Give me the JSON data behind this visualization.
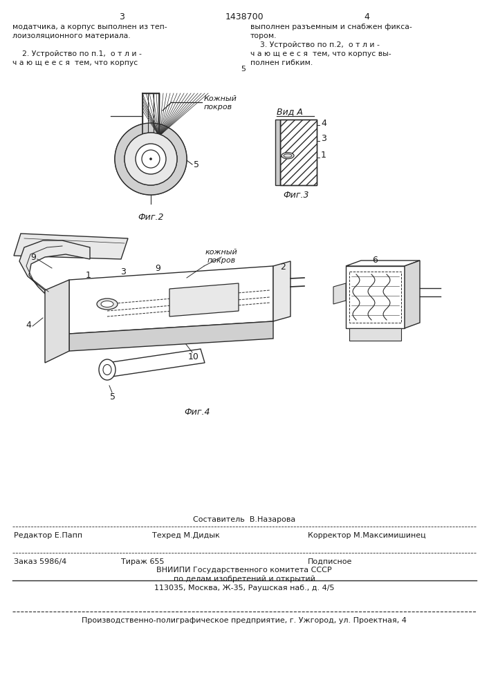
{
  "page_number_left": "3",
  "patent_number": "1438700",
  "page_number_right": "4",
  "col_left_text": [
    "модатчика, а корпус выполнен из теп-",
    "лоизоляционного материала.",
    "",
    "    2. Устройство по п.1,  о т л и -",
    "ч а ю щ е е с я  тем, что корпус"
  ],
  "col_right_text": [
    "выполнен разъемным и снабжен фикса-",
    "тором.",
    "    3. Устройство по п.2,  о т л и -",
    "ч а ю щ е е с я  тем, что корпус вы-",
    "полнен гибким."
  ],
  "center_number": "5",
  "fig2_label": "Фиг.2",
  "fig3_label": "Фиг.3",
  "fig4_label": "Фиг.4",
  "vid_a_label": "Вид А",
  "kozhniy_pokrov_label_top": "Кожный\nпокров",
  "kozhniy_pokrov_label_mid": "кожный\nпокров",
  "label_5_fig2": "5",
  "label_4_fig3": "4",
  "label_3_fig3": "3",
  "label_1_fig3": "1",
  "label_9_left": "9",
  "label_1_fig4": "1",
  "label_3_fig4": "3",
  "label_9_fig4": "9",
  "label_2_fig4": "2",
  "label_4_fig4": "4",
  "label_10_fig4": "10",
  "label_5_fig4": "5",
  "label_6_fig5": "6",
  "bottom_line1": "Составитель  В.Назарова",
  "bottom_line2_left": "Редактор Е.Папп",
  "bottom_line2_mid": "Техред М.Дидык",
  "bottom_line2_right": "Корректор М.Максимишинец",
  "bottom_line3_left": "Заказ 5986/4",
  "bottom_line3_mid": "Тираж 655",
  "bottom_line3_right": "Подписное",
  "bottom_line4": "ВНИИПИ Государственного комитета СССР",
  "bottom_line5": "по делам изобретений и открытий",
  "bottom_line6": "113035, Москва, Ж-35, Раушская наб., д. 4/5",
  "bottom_line7": "Производственно-полиграфическое предприятие, г. Ужгород, ул. Проектная, 4",
  "bg_color": "#ffffff",
  "text_color": "#1a1a1a",
  "line_color": "#2a2a2a"
}
